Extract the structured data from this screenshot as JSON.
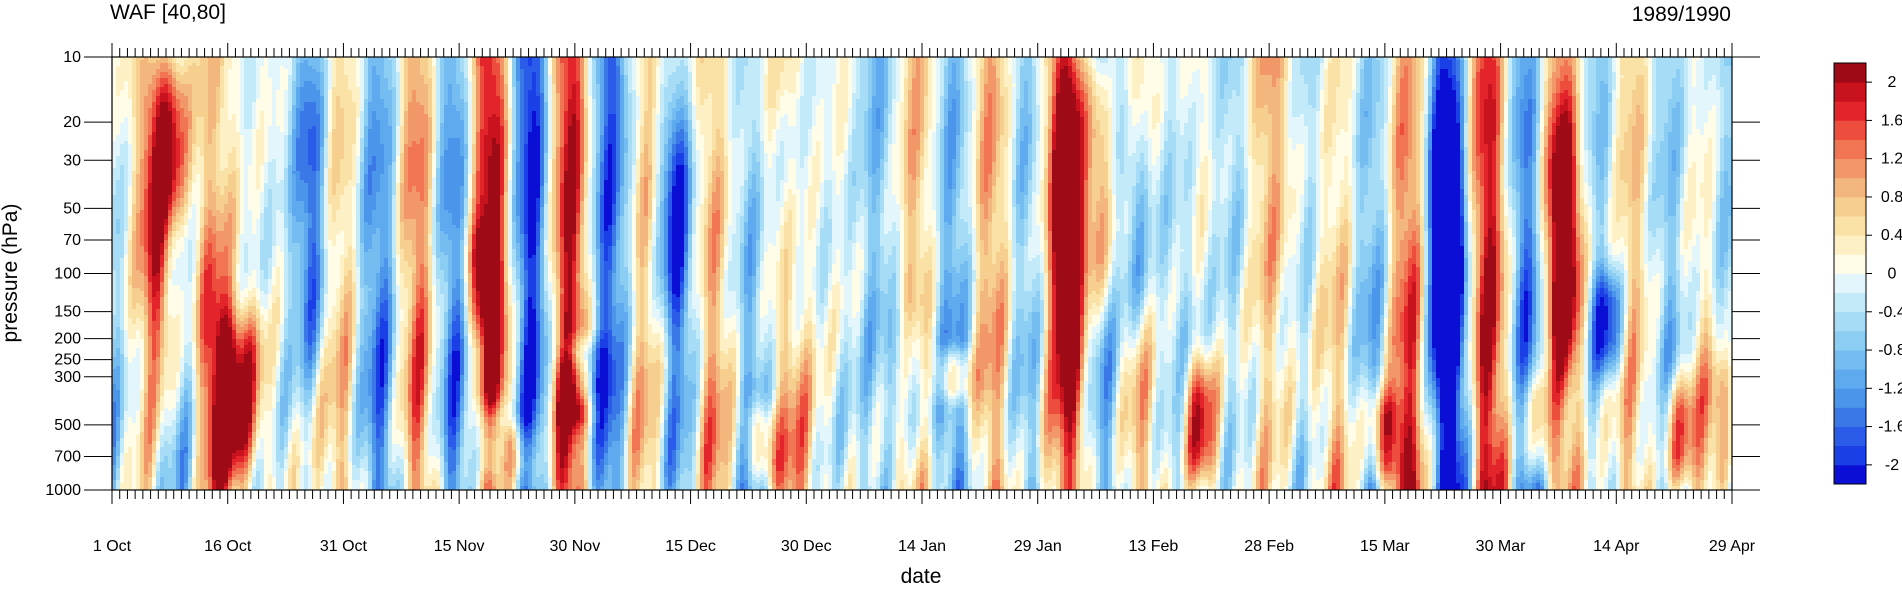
{
  "chart_data": {
    "type": "heatmap",
    "title_left": "WAF [40,80]",
    "title_right": "1989/1990",
    "xlabel": "date",
    "ylabel": "pressure (hPa)",
    "x_tick_labels": [
      "1 Oct",
      "16 Oct",
      "31 Oct",
      "15 Nov",
      "30 Nov",
      "15 Dec",
      "30 Dec",
      "14 Jan",
      "29 Jan",
      "13 Feb",
      "28 Feb",
      "15 Mar",
      "30 Mar",
      "14 Apr",
      "29 Apr"
    ],
    "x_range_days": [
      0,
      210
    ],
    "y_scale": "log",
    "y_ticks": [
      10,
      20,
      30,
      50,
      70,
      100,
      150,
      200,
      250,
      300,
      500,
      700,
      1000
    ],
    "ylim": [
      1000,
      10
    ],
    "colorbar": {
      "labels": [
        "2",
        "1.6",
        "1.2",
        "0.8",
        "0.4",
        "0",
        "-0.4",
        "-0.8",
        "-1.2",
        "-1.6",
        "-2"
      ],
      "levels": [
        -2.2,
        -2.0,
        -1.8,
        -1.6,
        -1.4,
        -1.2,
        -1.0,
        -0.8,
        -0.6,
        -0.4,
        -0.2,
        0,
        0.2,
        0.4,
        0.6,
        0.8,
        1.0,
        1.2,
        1.4,
        1.6,
        1.8,
        2.0,
        2.2
      ],
      "colors": [
        "#0b0fd5",
        "#1b3fe6",
        "#2a5ce9",
        "#3a78e8",
        "#4b95eb",
        "#5fa9ee",
        "#75bcf0",
        "#8ccdf3",
        "#a6dcf5",
        "#c2eaf8",
        "#e2f6fb",
        "#fffde8",
        "#fdf0c4",
        "#fae2a6",
        "#f6cf8e",
        "#f3b67d",
        "#f19768",
        "#f17453",
        "#ed4d3d",
        "#e4242b",
        "#c8131e",
        "#9e0a16"
      ]
    },
    "features": [
      {
        "day": 6,
        "p_top": 10,
        "p_bot": 300,
        "value": 2.0
      },
      {
        "day": 8,
        "p_top": 10,
        "p_bot": 60,
        "value": 1.6
      },
      {
        "day": 13,
        "p_top": 70,
        "p_bot": 1000,
        "value": 0.8
      },
      {
        "day": 15,
        "p_top": 150,
        "p_bot": 900,
        "value": 1.6
      },
      {
        "day": 18,
        "p_top": 150,
        "p_bot": 900,
        "value": 1.4
      },
      {
        "day": 26,
        "p_top": 10,
        "p_bot": 300,
        "value": -1.4
      },
      {
        "day": 48,
        "p_top": 60,
        "p_bot": 200,
        "value": 1.4
      },
      {
        "day": 49,
        "p_top": 400,
        "p_bot": 900,
        "value": -1.4
      },
      {
        "day": 52,
        "p_top": 500,
        "p_bot": 900,
        "value": 1.2
      },
      {
        "day": 61,
        "p_top": 200,
        "p_bot": 400,
        "value": -1.6
      },
      {
        "day": 60,
        "p_top": 250,
        "p_bot": 500,
        "value": 1.2
      },
      {
        "day": 73,
        "p_top": 15,
        "p_bot": 200,
        "value": -1.6
      },
      {
        "day": 84,
        "p_top": 400,
        "p_bot": 900,
        "value": 1.4
      },
      {
        "day": 88,
        "p_top": 15,
        "p_bot": 200,
        "value": -0.8
      },
      {
        "day": 103,
        "p_top": 150,
        "p_bot": 600,
        "value": -1.0
      },
      {
        "day": 109,
        "p_top": 250,
        "p_bot": 350,
        "value": 1.4
      },
      {
        "day": 124,
        "p_top": 10,
        "p_bot": 250,
        "value": 2.0
      },
      {
        "day": 128,
        "p_top": 10,
        "p_bot": 150,
        "value": 2.0
      },
      {
        "day": 125,
        "p_top": 200,
        "p_bot": 1000,
        "value": 0.8
      },
      {
        "day": 133,
        "p_top": 20,
        "p_bot": 200,
        "value": -1.4
      },
      {
        "day": 141,
        "p_top": 250,
        "p_bot": 1000,
        "value": 2.0
      },
      {
        "day": 165,
        "p_top": 350,
        "p_bot": 1000,
        "value": 2.0
      },
      {
        "day": 173,
        "p_top": 20,
        "p_bot": 300,
        "value": -1.8
      },
      {
        "day": 188,
        "p_top": 20,
        "p_bot": 250,
        "value": 2.0
      },
      {
        "day": 185,
        "p_top": 300,
        "p_bot": 900,
        "value": 1.4
      },
      {
        "day": 194,
        "p_top": 100,
        "p_bot": 300,
        "value": -1.6
      },
      {
        "day": 203,
        "p_top": 300,
        "p_bot": 1000,
        "value": 1.6
      },
      {
        "day": 209,
        "p_top": 250,
        "p_bot": 1000,
        "value": 1.4
      }
    ]
  }
}
